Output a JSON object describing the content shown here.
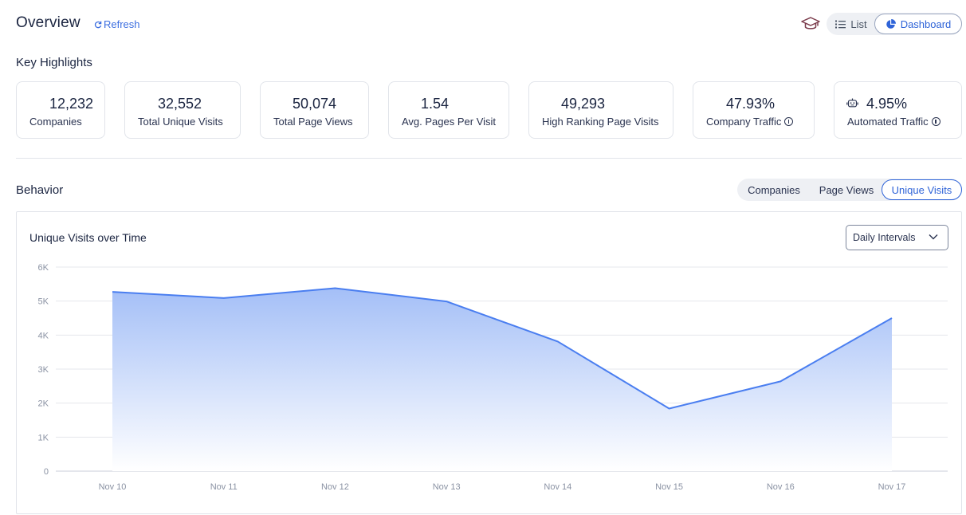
{
  "header": {
    "title": "Overview",
    "refresh_label": "Refresh",
    "view_toggle": {
      "list_label": "List",
      "dashboard_label": "Dashboard",
      "selected": "Dashboard"
    }
  },
  "key_highlights": {
    "title": "Key Highlights",
    "cards": [
      {
        "value": "12,232",
        "label": "Companies",
        "info": false,
        "icon": ""
      },
      {
        "value": "32,552",
        "label": "Total Unique Visits",
        "info": false,
        "icon": ""
      },
      {
        "value": "50,074",
        "label": "Total Page Views",
        "info": false,
        "icon": ""
      },
      {
        "value": "1.54",
        "label": "Avg. Pages Per Visit",
        "info": false,
        "icon": ""
      },
      {
        "value": "49,293",
        "label": "High Ranking Page Visits",
        "info": false,
        "icon": ""
      },
      {
        "value": "47.93%",
        "label": "Company Traffic",
        "info": true,
        "icon": ""
      },
      {
        "value": "4.95%",
        "label": "Automated Traffic",
        "info": true,
        "icon": "robot-icon"
      }
    ]
  },
  "behavior": {
    "title": "Behavior",
    "tabs": [
      "Companies",
      "Page Views",
      "Unique Visits"
    ],
    "selected_tab": "Unique Visits",
    "chart_title": "Unique Visits over Time",
    "interval_select": "Daily Intervals"
  },
  "colors": {
    "accent": "#2f64d8",
    "line": "#4a7ef0",
    "fill_top": "#a4bff7",
    "fill_bottom": "#ffffff"
  },
  "chart_data": {
    "type": "area",
    "title": "Unique Visits over Time",
    "categories": [
      "Nov 10",
      "Nov 11",
      "Nov 12",
      "Nov 13",
      "Nov 14",
      "Nov 15",
      "Nov 16",
      "Nov 17"
    ],
    "series": [
      {
        "name": "Unique Visits",
        "values": [
          5270,
          5090,
          5380,
          4990,
          3810,
          1840,
          2640,
          4500
        ]
      }
    ],
    "ylim": [
      0,
      6000
    ],
    "yticks": [
      0,
      1000,
      2000,
      3000,
      4000,
      5000,
      6000
    ],
    "ytick_labels": [
      "0",
      "1K",
      "2K",
      "3K",
      "4K",
      "5K",
      "6K"
    ],
    "grid": true,
    "xlabel": "",
    "ylabel": ""
  }
}
